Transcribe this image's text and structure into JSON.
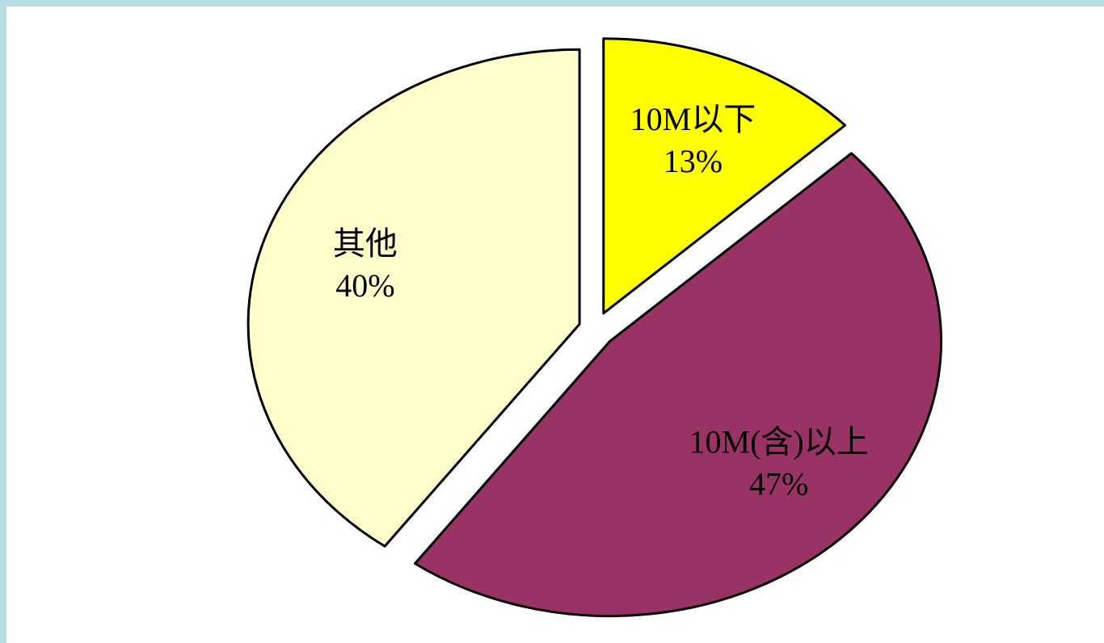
{
  "chart_data": {
    "type": "pie",
    "categories": [
      "10M以下",
      "10M(含)以上",
      "其他"
    ],
    "values": [
      13,
      47,
      40
    ],
    "value_labels": [
      "13%",
      "47%",
      "40%"
    ],
    "colors": [
      "#ffff00",
      "#993366",
      "#ffffcc"
    ],
    "exploded": true
  }
}
